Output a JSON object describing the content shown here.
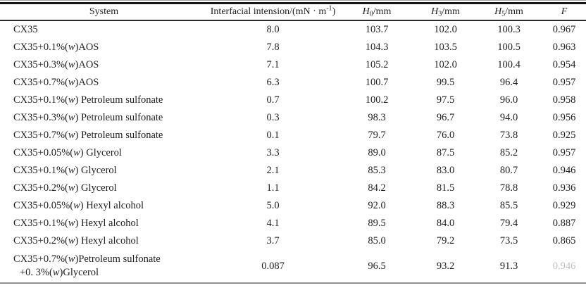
{
  "colors": {
    "text": "#1f1f1f",
    "thick_rule": "#151515",
    "header_rule": "#2a2a2a",
    "bottom_rule": "#8f8f8f"
  },
  "table": {
    "header": {
      "system": [
        {
          "t": "System"
        }
      ],
      "tension": [
        {
          "t": "Interfacial intension/(mN · m"
        },
        {
          "t": "-1",
          "sup": true
        },
        {
          "t": ")"
        }
      ],
      "h0": [
        {
          "t": "H",
          "i": true
        },
        {
          "t": "0",
          "sub": true
        },
        {
          "t": "/mm"
        }
      ],
      "h3": [
        {
          "t": "H",
          "i": true
        },
        {
          "t": "3",
          "sub": true
        },
        {
          "t": "/mm"
        }
      ],
      "h5": [
        {
          "t": "H",
          "i": true
        },
        {
          "t": "5",
          "sub": true
        },
        {
          "t": "/mm"
        }
      ],
      "f": [
        {
          "t": "F",
          "i": true
        }
      ]
    },
    "rows": [
      {
        "system": [
          [
            {
              "t": "CX35"
            }
          ]
        ],
        "tension": "8.0",
        "h0": "103.7",
        "h3": "102.0",
        "h5": "100.3",
        "f": "0.967"
      },
      {
        "system": [
          [
            {
              "t": "CX35+0.1%("
            },
            {
              "t": "w",
              "i": true
            },
            {
              "t": ")AOS"
            }
          ]
        ],
        "tension": "7.8",
        "h0": "104.3",
        "h3": "103.5",
        "h5": "100.5",
        "f": "0.963"
      },
      {
        "system": [
          [
            {
              "t": "CX35+0.3%("
            },
            {
              "t": "w",
              "i": true
            },
            {
              "t": ")AOS"
            }
          ]
        ],
        "tension": "7.1",
        "h0": "105.2",
        "h3": "102.0",
        "h5": "100.4",
        "f": "0.954"
      },
      {
        "system": [
          [
            {
              "t": "CX35+0.7%("
            },
            {
              "t": "w",
              "i": true
            },
            {
              "t": ")AOS"
            }
          ]
        ],
        "tension": "6.3",
        "h0": "100.7",
        "h3": "99.5",
        "h5": "96.4",
        "f": "0.957"
      },
      {
        "system": [
          [
            {
              "t": "CX35+0.1%("
            },
            {
              "t": "w",
              "i": true
            },
            {
              "t": ") Petroleum sulfonate"
            }
          ]
        ],
        "tension": "0.7",
        "h0": "100.2",
        "h3": "97.5",
        "h5": "96.0",
        "f": "0.958"
      },
      {
        "system": [
          [
            {
              "t": "CX35+0.3%("
            },
            {
              "t": "w",
              "i": true
            },
            {
              "t": ") Petroleum sulfonate"
            }
          ]
        ],
        "tension": "0.3",
        "h0": "98.3",
        "h3": "96.7",
        "h5": "94.0",
        "f": "0.956"
      },
      {
        "system": [
          [
            {
              "t": "CX35+0.7%("
            },
            {
              "t": "w",
              "i": true
            },
            {
              "t": ") Petroleum sulfonate"
            }
          ]
        ],
        "tension": "0.1",
        "h0": "79.7",
        "h3": "76.0",
        "h5": "73.8",
        "f": "0.925"
      },
      {
        "system": [
          [
            {
              "t": "CX35+0.05%("
            },
            {
              "t": "w",
              "i": true
            },
            {
              "t": ") Glycerol"
            }
          ]
        ],
        "tension": "3.3",
        "h0": "89.0",
        "h3": "87.5",
        "h5": "85.2",
        "f": "0.957"
      },
      {
        "system": [
          [
            {
              "t": "CX35+0.1%("
            },
            {
              "t": "w",
              "i": true
            },
            {
              "t": ") Glycerol"
            }
          ]
        ],
        "tension": "2.1",
        "h0": "85.3",
        "h3": "83.0",
        "h5": "80.7",
        "f": "0.946"
      },
      {
        "system": [
          [
            {
              "t": "CX35+0.2%("
            },
            {
              "t": "w",
              "i": true
            },
            {
              "t": ") Glycerol"
            }
          ]
        ],
        "tension": "1.1",
        "h0": "84.2",
        "h3": "81.5",
        "h5": "78.8",
        "f": "0.936"
      },
      {
        "system": [
          [
            {
              "t": "CX35+0.05%("
            },
            {
              "t": "w",
              "i": true
            },
            {
              "t": ") Hexyl alcohol"
            }
          ]
        ],
        "tension": "5.0",
        "h0": "92.0",
        "h3": "88.3",
        "h5": "85.5",
        "f": "0.929"
      },
      {
        "system": [
          [
            {
              "t": "CX35+0.1%("
            },
            {
              "t": "w",
              "i": true
            },
            {
              "t": ") Hexyl alcohol"
            }
          ]
        ],
        "tension": "4.1",
        "h0": "89.5",
        "h3": "84.0",
        "h5": "79.4",
        "f": "0.887"
      },
      {
        "system": [
          [
            {
              "t": "CX35+0.2%("
            },
            {
              "t": "w",
              "i": true
            },
            {
              "t": ") Hexyl alcohol"
            }
          ]
        ],
        "tension": "3.7",
        "h0": "85.0",
        "h3": "79.2",
        "h5": "73.5",
        "f": "0.865"
      },
      {
        "system": [
          [
            {
              "t": "CX35+0.7%("
            },
            {
              "t": "w",
              "i": true
            },
            {
              "t": ")Petroleum sulfonate"
            }
          ],
          [
            {
              "t": "+0. 3%("
            },
            {
              "t": "w",
              "i": true
            },
            {
              "t": ")Glycerol"
            }
          ]
        ],
        "tension": "0.087",
        "h0": "96.5",
        "h3": "93.2",
        "h5": "91.3",
        "f": "0.946",
        "f_faded": true
      }
    ]
  }
}
